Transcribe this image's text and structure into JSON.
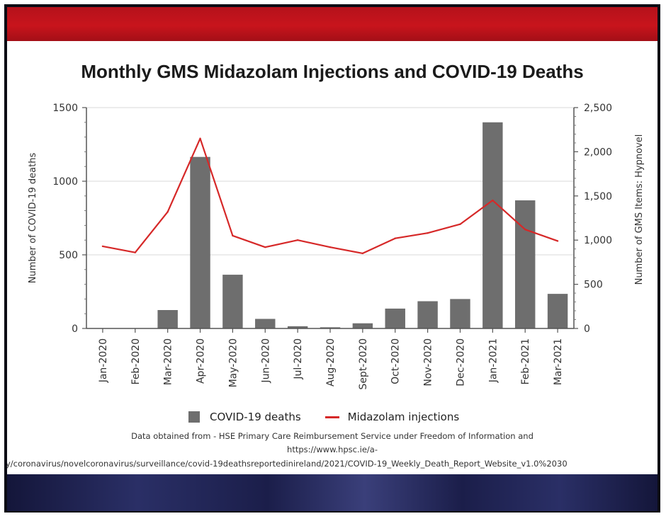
{
  "chart_data": {
    "type": "bar",
    "title": "Monthly GMS Midazolam Injections and COVID-19 Deaths",
    "categories": [
      "Jan-2020",
      "Feb-2020",
      "Mar-2020",
      "Apr-2020",
      "May-2020",
      "Jun-2020",
      "Jul-2020",
      "Aug-2020",
      "Sept-2020",
      "Oct-2020",
      "Nov-2020",
      "Dec-2020",
      "Jan-2021",
      "Feb-2021",
      "Mar-2021"
    ],
    "series": [
      {
        "name": "COVID-19 deaths",
        "kind": "bar",
        "axis": "left",
        "color": "#6e6e6e",
        "values": [
          0,
          0,
          125,
          1165,
          365,
          65,
          15,
          8,
          35,
          135,
          185,
          200,
          1400,
          870,
          235
        ]
      },
      {
        "name": "Midazolam injections",
        "kind": "line",
        "axis": "right",
        "color": "#d62828",
        "values": [
          930,
          860,
          1320,
          2150,
          1050,
          920,
          1000,
          920,
          850,
          1020,
          1080,
          1180,
          1450,
          1120,
          990
        ]
      }
    ],
    "ylabel": "Number of COVID-19 deaths",
    "ylim": [
      0,
      1500
    ],
    "yticks": [
      "0",
      "500",
      "1000",
      "1500"
    ],
    "y2label": "Number of GMS Items: Hypnovel",
    "y2lim": [
      0,
      2500
    ],
    "y2ticks": [
      "0",
      "500",
      "1,000",
      "1,500",
      "2,000",
      "2,500"
    ],
    "grid": true,
    "legend_position": "bottom"
  },
  "source": {
    "line1": "Data obtained from -  HSE Primary Care Reimbursement Service under Freedom of Information and",
    "line2": "https://www.hpsc.ie/a-",
    "line3": "y/coronavirus/novelcoronavirus/surveillance/covid-19deathsreportedinireland/2021/COVID-19_Weekly_Death_Report_Website_v1.0%2030"
  }
}
